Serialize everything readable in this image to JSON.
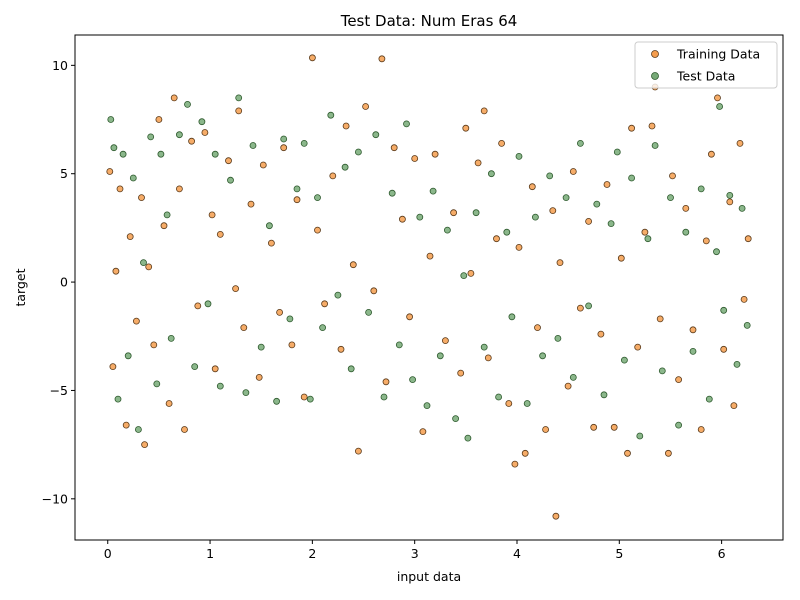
{
  "chart_data": {
    "type": "scatter",
    "title": "Test Data: Num Eras 64",
    "xlabel": "input data",
    "ylabel": "target",
    "xlim": [
      -0.32,
      6.6
    ],
    "ylim": [
      -11.9,
      11.4
    ],
    "xticks": [
      0,
      1,
      2,
      3,
      4,
      5,
      6
    ],
    "yticks": [
      -10,
      -5,
      0,
      5,
      10
    ],
    "grid": false,
    "legend_position": "top-right",
    "series": [
      {
        "name": "Training Data",
        "color": "#f59d4d",
        "edge_color": "#5a3a1a",
        "points": [
          [
            0.02,
            5.1
          ],
          [
            0.05,
            -3.9
          ],
          [
            0.08,
            0.5
          ],
          [
            0.12,
            4.3
          ],
          [
            0.18,
            -6.6
          ],
          [
            0.22,
            2.1
          ],
          [
            0.28,
            -1.8
          ],
          [
            0.33,
            3.9
          ],
          [
            0.36,
            -7.5
          ],
          [
            0.4,
            0.7
          ],
          [
            0.45,
            -2.9
          ],
          [
            0.5,
            7.5
          ],
          [
            0.55,
            2.6
          ],
          [
            0.6,
            -5.6
          ],
          [
            0.65,
            8.5
          ],
          [
            0.7,
            4.3
          ],
          [
            0.75,
            -6.8
          ],
          [
            0.82,
            6.5
          ],
          [
            0.88,
            -1.1
          ],
          [
            0.95,
            6.9
          ],
          [
            1.02,
            3.1
          ],
          [
            1.05,
            -4.0
          ],
          [
            1.1,
            2.2
          ],
          [
            1.18,
            5.6
          ],
          [
            1.25,
            -0.3
          ],
          [
            1.28,
            7.9
          ],
          [
            1.33,
            -2.1
          ],
          [
            1.4,
            3.6
          ],
          [
            1.48,
            -4.4
          ],
          [
            1.52,
            5.4
          ],
          [
            1.6,
            1.8
          ],
          [
            1.68,
            -1.4
          ],
          [
            1.72,
            6.2
          ],
          [
            1.8,
            -2.9
          ],
          [
            1.85,
            3.8
          ],
          [
            1.92,
            -5.3
          ],
          [
            2.0,
            10.35
          ],
          [
            2.05,
            2.4
          ],
          [
            2.12,
            -1.0
          ],
          [
            2.2,
            4.9
          ],
          [
            2.28,
            -3.1
          ],
          [
            2.33,
            7.2
          ],
          [
            2.4,
            0.8
          ],
          [
            2.45,
            -7.8
          ],
          [
            2.52,
            8.1
          ],
          [
            2.6,
            -0.4
          ],
          [
            2.68,
            10.3
          ],
          [
            2.72,
            -4.6
          ],
          [
            2.8,
            6.2
          ],
          [
            2.88,
            2.9
          ],
          [
            2.95,
            -1.6
          ],
          [
            3.0,
            5.7
          ],
          [
            3.08,
            -6.9
          ],
          [
            3.15,
            1.2
          ],
          [
            3.2,
            5.9
          ],
          [
            3.3,
            -2.7
          ],
          [
            3.38,
            3.2
          ],
          [
            3.45,
            -4.2
          ],
          [
            3.5,
            7.1
          ],
          [
            3.55,
            0.4
          ],
          [
            3.62,
            5.5
          ],
          [
            3.68,
            7.9
          ],
          [
            3.72,
            -3.5
          ],
          [
            3.8,
            2.0
          ],
          [
            3.85,
            6.4
          ],
          [
            3.92,
            -5.6
          ],
          [
            3.98,
            -8.4
          ],
          [
            4.02,
            1.6
          ],
          [
            4.08,
            -7.9
          ],
          [
            4.15,
            4.4
          ],
          [
            4.2,
            -2.1
          ],
          [
            4.28,
            -6.8
          ],
          [
            4.35,
            3.3
          ],
          [
            4.38,
            -10.8
          ],
          [
            4.42,
            0.9
          ],
          [
            4.5,
            -4.8
          ],
          [
            4.55,
            5.1
          ],
          [
            4.62,
            -1.2
          ],
          [
            4.7,
            2.8
          ],
          [
            4.75,
            -6.7
          ],
          [
            4.82,
            -2.4
          ],
          [
            4.88,
            4.5
          ],
          [
            4.95,
            -6.7
          ],
          [
            5.02,
            1.1
          ],
          [
            5.08,
            -7.9
          ],
          [
            5.12,
            7.1
          ],
          [
            5.18,
            -3.0
          ],
          [
            5.25,
            2.3
          ],
          [
            5.32,
            7.2
          ],
          [
            5.35,
            9.0
          ],
          [
            5.4,
            -1.7
          ],
          [
            5.48,
            -7.9
          ],
          [
            5.52,
            4.9
          ],
          [
            5.58,
            -4.5
          ],
          [
            5.65,
            3.4
          ],
          [
            5.72,
            -2.2
          ],
          [
            5.8,
            -6.8
          ],
          [
            5.85,
            1.9
          ],
          [
            5.9,
            5.9
          ],
          [
            5.96,
            8.5
          ],
          [
            6.02,
            -3.1
          ],
          [
            6.08,
            3.7
          ],
          [
            6.12,
            -5.7
          ],
          [
            6.18,
            6.4
          ],
          [
            6.22,
            -0.8
          ],
          [
            6.26,
            2.0
          ]
        ]
      },
      {
        "name": "Test Data",
        "color": "#77aa77",
        "edge_color": "#2e5a2e",
        "points": [
          [
            0.03,
            7.5
          ],
          [
            0.06,
            6.2
          ],
          [
            0.1,
            -5.4
          ],
          [
            0.15,
            5.9
          ],
          [
            0.2,
            -3.4
          ],
          [
            0.25,
            4.8
          ],
          [
            0.3,
            -6.8
          ],
          [
            0.35,
            0.9
          ],
          [
            0.42,
            6.7
          ],
          [
            0.48,
            -4.7
          ],
          [
            0.52,
            5.9
          ],
          [
            0.58,
            3.1
          ],
          [
            0.62,
            -2.6
          ],
          [
            0.7,
            6.8
          ],
          [
            0.78,
            8.2
          ],
          [
            0.85,
            -3.9
          ],
          [
            0.92,
            7.4
          ],
          [
            0.98,
            -1.0
          ],
          [
            1.05,
            5.9
          ],
          [
            1.1,
            -4.8
          ],
          [
            1.2,
            4.7
          ],
          [
            1.28,
            8.5
          ],
          [
            1.35,
            -5.1
          ],
          [
            1.42,
            6.3
          ],
          [
            1.5,
            -3.0
          ],
          [
            1.58,
            2.6
          ],
          [
            1.65,
            -5.5
          ],
          [
            1.72,
            6.6
          ],
          [
            1.78,
            -1.7
          ],
          [
            1.85,
            4.3
          ],
          [
            1.92,
            6.4
          ],
          [
            1.98,
            -5.4
          ],
          [
            2.05,
            3.9
          ],
          [
            2.1,
            -2.1
          ],
          [
            2.18,
            7.7
          ],
          [
            2.25,
            -0.6
          ],
          [
            2.32,
            5.3
          ],
          [
            2.38,
            -4.0
          ],
          [
            2.45,
            6.0
          ],
          [
            2.55,
            -1.4
          ],
          [
            2.62,
            6.8
          ],
          [
            2.7,
            -5.3
          ],
          [
            2.78,
            4.1
          ],
          [
            2.85,
            -2.9
          ],
          [
            2.92,
            7.3
          ],
          [
            2.98,
            -4.5
          ],
          [
            3.05,
            3.0
          ],
          [
            3.12,
            -5.7
          ],
          [
            3.18,
            4.2
          ],
          [
            3.25,
            -3.4
          ],
          [
            3.32,
            2.4
          ],
          [
            3.4,
            -6.3
          ],
          [
            3.48,
            0.3
          ],
          [
            3.52,
            -7.2
          ],
          [
            3.6,
            3.2
          ],
          [
            3.68,
            -3.0
          ],
          [
            3.75,
            5.0
          ],
          [
            3.82,
            -5.3
          ],
          [
            3.9,
            2.3
          ],
          [
            3.95,
            -1.6
          ],
          [
            4.02,
            5.8
          ],
          [
            4.1,
            -5.6
          ],
          [
            4.18,
            3.0
          ],
          [
            4.25,
            -3.4
          ],
          [
            4.32,
            4.9
          ],
          [
            4.4,
            -2.6
          ],
          [
            4.48,
            3.9
          ],
          [
            4.55,
            -4.4
          ],
          [
            4.62,
            6.4
          ],
          [
            4.7,
            -1.1
          ],
          [
            4.78,
            3.6
          ],
          [
            4.85,
            -5.2
          ],
          [
            4.92,
            2.7
          ],
          [
            4.98,
            6.0
          ],
          [
            5.05,
            -3.6
          ],
          [
            5.12,
            4.8
          ],
          [
            5.2,
            -7.1
          ],
          [
            5.28,
            2.0
          ],
          [
            5.35,
            6.3
          ],
          [
            5.42,
            -4.1
          ],
          [
            5.5,
            3.9
          ],
          [
            5.58,
            -6.6
          ],
          [
            5.65,
            2.3
          ],
          [
            5.72,
            -3.2
          ],
          [
            5.8,
            4.3
          ],
          [
            5.88,
            -5.4
          ],
          [
            5.95,
            1.4
          ],
          [
            5.98,
            8.1
          ],
          [
            6.02,
            -1.3
          ],
          [
            6.08,
            4.0
          ],
          [
            6.15,
            -3.8
          ],
          [
            6.2,
            3.4
          ],
          [
            6.25,
            -2.0
          ]
        ]
      }
    ]
  }
}
